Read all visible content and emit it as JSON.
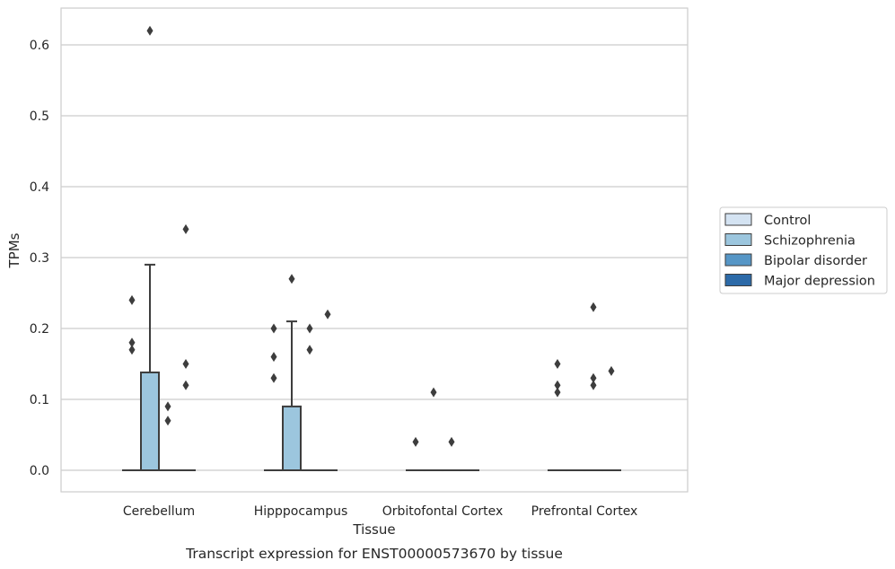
{
  "chart_data": {
    "type": "box",
    "title": "",
    "caption": "Transcript expression for ENST00000573670 by tissue",
    "xlabel": "Tissue",
    "ylabel": "TPMs",
    "ylim": [
      -0.03,
      0.65
    ],
    "yticks": [
      "0.0",
      "0.1",
      "0.2",
      "0.3",
      "0.4",
      "0.5",
      "0.6"
    ],
    "grid": "horizontal",
    "legend_placement": "outside-right",
    "categories": [
      "Cerebellum",
      "Hipppocampus",
      "Orbitofontal Cortex",
      "Prefrontal Cortex"
    ],
    "series": [
      {
        "name": "Control",
        "color": "#d4e3f2"
      },
      {
        "name": "Schizophrenia",
        "color": "#9cc6de"
      },
      {
        "name": "Bipolar disorder",
        "color": "#5696c6"
      },
      {
        "name": "Major depression",
        "color": "#2c6aa8"
      }
    ],
    "boxes": [
      {
        "category": "Cerebellum",
        "series": "Control",
        "q1": 0,
        "median": 0,
        "q3": 0,
        "whisker_low": 0,
        "whisker_high": 0,
        "outliers": [
          0.24,
          0.18,
          0.17
        ]
      },
      {
        "category": "Cerebellum",
        "series": "Schizophrenia",
        "q1": 0,
        "median": 0,
        "q3": 0.138,
        "whisker_low": 0,
        "whisker_high": 0.29,
        "outliers": [
          0.62
        ]
      },
      {
        "category": "Cerebellum",
        "series": "Bipolar disorder",
        "q1": 0,
        "median": 0,
        "q3": 0,
        "whisker_low": 0,
        "whisker_high": 0,
        "outliers": [
          0.09,
          0.07
        ]
      },
      {
        "category": "Cerebellum",
        "series": "Major depression",
        "q1": 0,
        "median": 0,
        "q3": 0,
        "whisker_low": 0,
        "whisker_high": 0,
        "outliers": [
          0.34,
          0.15,
          0.12
        ]
      },
      {
        "category": "Hipppocampus",
        "series": "Control",
        "q1": 0,
        "median": 0,
        "q3": 0,
        "whisker_low": 0,
        "whisker_high": 0,
        "outliers": [
          0.2,
          0.16,
          0.13
        ]
      },
      {
        "category": "Hipppocampus",
        "series": "Schizophrenia",
        "q1": 0,
        "median": 0,
        "q3": 0.09,
        "whisker_low": 0,
        "whisker_high": 0.21,
        "outliers": [
          0.27
        ]
      },
      {
        "category": "Hipppocampus",
        "series": "Bipolar disorder",
        "q1": 0,
        "median": 0,
        "q3": 0,
        "whisker_low": 0,
        "whisker_high": 0,
        "outliers": [
          0.2,
          0.17
        ]
      },
      {
        "category": "Hipppocampus",
        "series": "Major depression",
        "q1": 0,
        "median": 0,
        "q3": 0,
        "whisker_low": 0,
        "whisker_high": 0,
        "outliers": [
          0.22
        ]
      },
      {
        "category": "Orbitofontal Cortex",
        "series": "Control",
        "q1": 0,
        "median": 0,
        "q3": 0,
        "whisker_low": 0,
        "whisker_high": 0,
        "outliers": [
          0.04
        ]
      },
      {
        "category": "Orbitofontal Cortex",
        "series": "Schizophrenia",
        "q1": 0,
        "median": 0,
        "q3": 0,
        "whisker_low": 0,
        "whisker_high": 0,
        "outliers": [
          0.11
        ]
      },
      {
        "category": "Orbitofontal Cortex",
        "series": "Bipolar disorder",
        "q1": 0,
        "median": 0,
        "q3": 0,
        "whisker_low": 0,
        "whisker_high": 0,
        "outliers": [
          0.04
        ]
      },
      {
        "category": "Orbitofontal Cortex",
        "series": "Major depression",
        "q1": 0,
        "median": 0,
        "q3": 0,
        "whisker_low": 0,
        "whisker_high": 0,
        "outliers": []
      },
      {
        "category": "Prefrontal Cortex",
        "series": "Control",
        "q1": 0,
        "median": 0,
        "q3": 0,
        "whisker_low": 0,
        "whisker_high": 0,
        "outliers": [
          0.15,
          0.12,
          0.11
        ]
      },
      {
        "category": "Prefrontal Cortex",
        "series": "Schizophrenia",
        "q1": 0,
        "median": 0,
        "q3": 0,
        "whisker_low": 0,
        "whisker_high": 0,
        "outliers": []
      },
      {
        "category": "Prefrontal Cortex",
        "series": "Bipolar disorder",
        "q1": 0,
        "median": 0,
        "q3": 0,
        "whisker_low": 0,
        "whisker_high": 0,
        "outliers": [
          0.23,
          0.13,
          0.12
        ]
      },
      {
        "category": "Prefrontal Cortex",
        "series": "Major depression",
        "q1": 0,
        "median": 0,
        "q3": 0,
        "whisker_low": 0,
        "whisker_high": 0,
        "outliers": [
          0.14
        ]
      }
    ]
  }
}
